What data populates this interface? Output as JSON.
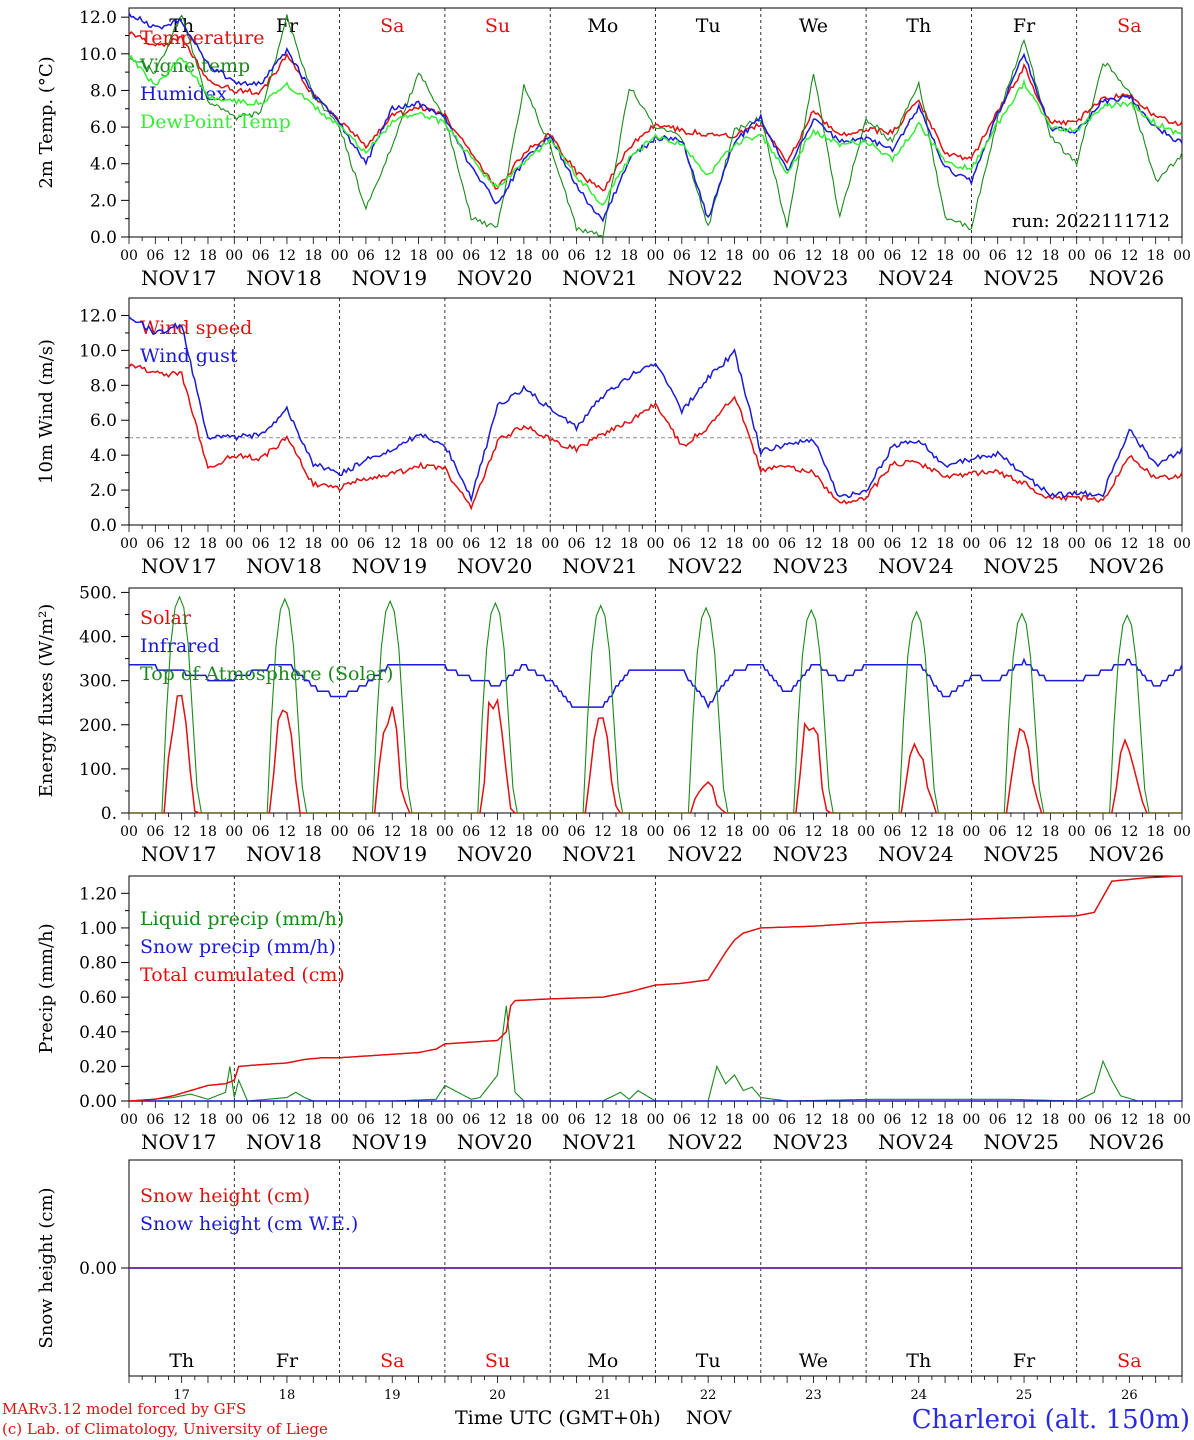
{
  "meta": {
    "run_label": "run: 2022111712",
    "model_line1": "MARv3.12 model forced by GFS",
    "model_line2": "(c) Lab. of Climatology, University of Liege",
    "xlabel": "Time UTC (GMT+0h)",
    "month": "NOV",
    "location": "Charleroi (alt. 150m)"
  },
  "colors": {
    "red": "#e01010",
    "darkgreen": "#1a8a1a",
    "blue": "#1a1ad8",
    "lightgreen": "#33ee33",
    "purple": "#7030a0",
    "weekend": "#e01010"
  },
  "days": [
    {
      "name": "Th",
      "date": "17",
      "weekend": false
    },
    {
      "name": "Fr",
      "date": "18",
      "weekend": false
    },
    {
      "name": "Sa",
      "date": "19",
      "weekend": true
    },
    {
      "name": "Su",
      "date": "20",
      "weekend": true
    },
    {
      "name": "Mo",
      "date": "21",
      "weekend": false
    },
    {
      "name": "Tu",
      "date": "22",
      "weekend": false
    },
    {
      "name": "We",
      "date": "23",
      "weekend": false
    },
    {
      "name": "Th",
      "date": "24",
      "weekend": false
    },
    {
      "name": "Fr",
      "date": "25",
      "weekend": false
    },
    {
      "name": "Sa",
      "date": "26",
      "weekend": true
    }
  ],
  "hour_labels": [
    "00",
    "06",
    "12",
    "18"
  ],
  "chart_data": [
    {
      "type": "line",
      "ylabel": "2m Temp. (°C)",
      "ylim": [
        0,
        12.5
      ],
      "yticks": [
        "0.0",
        "2.0",
        "4.0",
        "6.0",
        "8.0",
        "10.0",
        "12.0"
      ],
      "ytick_values": [
        0,
        2,
        4,
        6,
        8,
        10,
        12
      ],
      "legend_position": "top-left",
      "x_unit": "hours since NOV 17 00 UTC",
      "series": [
        {
          "name": "Temperature",
          "color": "red",
          "x": [
            0,
            6,
            12,
            18,
            24,
            30,
            36,
            42,
            48,
            54,
            60,
            66,
            72,
            78,
            84,
            90,
            96,
            102,
            108,
            114,
            120,
            126,
            132,
            138,
            144,
            150,
            156,
            162,
            168,
            174,
            180,
            186,
            192,
            198,
            204,
            210,
            216,
            222,
            228,
            234,
            240
          ],
          "y": [
            11.2,
            10.4,
            10.8,
            8.6,
            8.0,
            7.9,
            9.9,
            7.7,
            6.3,
            5.0,
            6.6,
            7.1,
            6.6,
            4.6,
            2.6,
            4.6,
            5.6,
            3.5,
            2.5,
            4.9,
            6.2,
            5.8,
            5.6,
            5.5,
            6.2,
            4.0,
            6.9,
            5.5,
            5.9,
            5.7,
            7.5,
            4.5,
            4.3,
            6.8,
            9.3,
            6.2,
            6.3,
            7.6,
            7.8,
            6.5,
            6.2
          ]
        },
        {
          "name": "Vigne temp",
          "color": "darkgreen",
          "x": [
            0,
            6,
            12,
            18,
            24,
            30,
            36,
            42,
            48,
            54,
            60,
            66,
            72,
            78,
            84,
            90,
            96,
            102,
            108,
            114,
            120,
            126,
            132,
            138,
            144,
            150,
            156,
            162,
            168,
            174,
            180,
            186,
            192,
            198,
            204,
            210,
            216,
            222,
            228,
            234,
            240
          ],
          "y": [
            9.9,
            9.0,
            12.2,
            7.4,
            6.5,
            6.8,
            12.0,
            7.7,
            6.0,
            1.5,
            5.0,
            9.0,
            6.5,
            1.0,
            0.5,
            8.2,
            5.0,
            0.5,
            0.0,
            8.2,
            6.0,
            5.4,
            0.5,
            5.8,
            6.5,
            0.5,
            9.0,
            1.0,
            6.5,
            5.2,
            8.5,
            1.0,
            0.5,
            6.5,
            10.8,
            5.5,
            4.0,
            9.6,
            8.0,
            3.0,
            4.5
          ]
        },
        {
          "name": "Humidex",
          "color": "blue",
          "x": [
            0,
            6,
            12,
            18,
            24,
            30,
            36,
            42,
            48,
            54,
            60,
            66,
            72,
            78,
            84,
            90,
            96,
            102,
            108,
            114,
            120,
            126,
            132,
            138,
            144,
            150,
            156,
            162,
            168,
            174,
            180,
            186,
            192,
            198,
            204,
            210,
            216,
            222,
            228,
            234,
            240
          ],
          "y": [
            12.2,
            11.4,
            11.8,
            9.4,
            8.5,
            8.3,
            10.2,
            7.8,
            6.2,
            4.0,
            7.0,
            7.3,
            6.5,
            3.8,
            1.8,
            4.2,
            5.5,
            2.8,
            0.8,
            4.3,
            5.4,
            5.3,
            1.0,
            5.2,
            6.5,
            3.6,
            6.4,
            5.2,
            5.4,
            4.7,
            7.1,
            3.8,
            3.0,
            6.7,
            10.0,
            5.9,
            5.8,
            7.4,
            7.7,
            6.0,
            5.1
          ]
        },
        {
          "name": "DewPoint Temp",
          "color": "lightgreen",
          "x": [
            0,
            6,
            12,
            18,
            24,
            30,
            36,
            42,
            48,
            54,
            60,
            66,
            72,
            78,
            84,
            90,
            96,
            102,
            108,
            114,
            120,
            126,
            132,
            138,
            144,
            150,
            156,
            162,
            168,
            174,
            180,
            186,
            192,
            198,
            204,
            210,
            216,
            222,
            228,
            234,
            240
          ],
          "y": [
            9.9,
            8.2,
            9.8,
            7.7,
            7.4,
            7.3,
            8.3,
            7.2,
            6.0,
            4.6,
            6.3,
            6.8,
            6.2,
            4.3,
            2.6,
            4.1,
            5.3,
            3.3,
            1.8,
            4.3,
            5.5,
            5.1,
            3.3,
            5.1,
            5.6,
            3.5,
            5.8,
            5.1,
            5.2,
            4.3,
            6.2,
            4.1,
            3.7,
            6.2,
            8.4,
            6.0,
            5.8,
            7.1,
            7.3,
            6.2,
            5.5
          ]
        }
      ]
    },
    {
      "type": "line",
      "ylabel": "10m Wind (m/s)",
      "ylim": [
        0,
        13
      ],
      "yticks": [
        "0.0",
        "2.0",
        "4.0",
        "6.0",
        "8.0",
        "10.0",
        "12.0"
      ],
      "ytick_values": [
        0,
        2,
        4,
        6,
        8,
        10,
        12
      ],
      "reference_line": 5,
      "legend_position": "top-left",
      "series": [
        {
          "name": "Wind speed",
          "color": "red",
          "x": [
            0,
            6,
            12,
            18,
            24,
            30,
            36,
            42,
            48,
            54,
            60,
            66,
            72,
            78,
            84,
            90,
            96,
            102,
            108,
            114,
            120,
            126,
            132,
            138,
            144,
            150,
            156,
            162,
            168,
            174,
            180,
            186,
            192,
            198,
            204,
            210,
            216,
            222,
            228,
            234,
            240
          ],
          "y": [
            9.2,
            8.7,
            8.6,
            3.3,
            4.0,
            3.8,
            5.0,
            2.3,
            2.1,
            2.7,
            2.9,
            3.4,
            3.2,
            1.0,
            4.8,
            5.7,
            4.9,
            4.3,
            5.2,
            5.9,
            7.0,
            4.5,
            5.6,
            7.4,
            3.2,
            3.3,
            3.0,
            1.2,
            1.6,
            3.5,
            3.6,
            2.7,
            3.0,
            3.0,
            2.4,
            1.5,
            1.6,
            1.4,
            4.0,
            2.6,
            2.9
          ]
        },
        {
          "name": "Wind gust",
          "color": "blue",
          "x": [
            0,
            6,
            12,
            18,
            24,
            30,
            36,
            42,
            48,
            54,
            60,
            66,
            72,
            78,
            84,
            90,
            96,
            102,
            108,
            114,
            120,
            126,
            132,
            138,
            144,
            150,
            156,
            162,
            168,
            174,
            180,
            186,
            192,
            198,
            204,
            210,
            216,
            222,
            228,
            234,
            240
          ],
          "y": [
            12.0,
            11.0,
            11.5,
            5.0,
            5.0,
            5.2,
            6.6,
            3.5,
            2.9,
            3.7,
            4.3,
            5.2,
            4.6,
            1.5,
            6.8,
            7.8,
            6.7,
            5.6,
            7.4,
            8.5,
            9.3,
            6.5,
            8.4,
            9.9,
            4.2,
            4.6,
            4.9,
            1.5,
            2.0,
            4.5,
            4.9,
            3.3,
            3.8,
            4.1,
            2.9,
            1.7,
            1.8,
            1.8,
            5.5,
            3.4,
            4.3
          ]
        }
      ]
    },
    {
      "type": "line",
      "ylabel": "Energy fluxes (W/m²)",
      "ylim": [
        0,
        510
      ],
      "yticks": [
        "0.",
        "100.",
        "200.",
        "300.",
        "400.",
        "500."
      ],
      "ytick_values": [
        0,
        100,
        200,
        300,
        400,
        500
      ],
      "legend_position": "top-left",
      "series": [
        {
          "name": "Solar",
          "color": "red",
          "daily_x_offsets": [
            8,
            9,
            10,
            11,
            12,
            13,
            14,
            15,
            16
          ],
          "daily_peaks": [
            275,
            250,
            230,
            285,
            240,
            70,
            220,
            150,
            200,
            160
          ],
          "daily_profile": [
            0,
            0.35,
            0.8,
            0.95,
            1.0,
            0.75,
            0.3,
            0.1,
            0
          ]
        },
        {
          "name": "Infrared",
          "color": "blue",
          "x": [
            0,
            6,
            12,
            18,
            24,
            30,
            36,
            42,
            48,
            54,
            60,
            66,
            72,
            78,
            84,
            90,
            96,
            102,
            108,
            114,
            120,
            126,
            132,
            138,
            144,
            150,
            156,
            162,
            168,
            174,
            180,
            186,
            192,
            198,
            204,
            210,
            216,
            222,
            228,
            234,
            240
          ],
          "y": [
            335,
            330,
            320,
            305,
            305,
            325,
            340,
            285,
            260,
            290,
            340,
            330,
            330,
            305,
            290,
            335,
            300,
            235,
            240,
            325,
            325,
            325,
            245,
            320,
            340,
            270,
            340,
            300,
            335,
            330,
            340,
            260,
            310,
            300,
            345,
            295,
            300,
            320,
            345,
            285,
            330
          ]
        },
        {
          "name": "Top of Atmosphere (Solar)",
          "color": "darkgreen",
          "daily_x_offsets": [
            7.5,
            8.5,
            9.5,
            10.5,
            11.5,
            12.5,
            13.5,
            14.5,
            15.5,
            16.5
          ],
          "daily_peaks": [
            490,
            485,
            480,
            476,
            470,
            465,
            460,
            456,
            452,
            448
          ],
          "daily_profile": [
            0,
            0.45,
            0.78,
            0.95,
            1.0,
            0.95,
            0.78,
            0.45,
            0.12,
            0
          ]
        }
      ]
    },
    {
      "type": "line",
      "ylabel": "Precip (mm/h)",
      "ylim": [
        0,
        1.3
      ],
      "yticks": [
        "0.00",
        "0.20",
        "0.40",
        "0.60",
        "0.80",
        "1.00",
        "1.20"
      ],
      "ytick_values": [
        0,
        0.2,
        0.4,
        0.6,
        0.8,
        1.0,
        1.2
      ],
      "legend_position": "top-left",
      "series": [
        {
          "name": "Liquid precip (mm/h)",
          "color": "darkgreen",
          "x": [
            0,
            10,
            14,
            18,
            22,
            23,
            24,
            25,
            27,
            36,
            38,
            40,
            42,
            60,
            70,
            72,
            78,
            80,
            84,
            86,
            88,
            90,
            92,
            96,
            102,
            108,
            112,
            114,
            116,
            120,
            132,
            134,
            136,
            138,
            140,
            142,
            144,
            150,
            170,
            200,
            216,
            220,
            222,
            224,
            226,
            230,
            240
          ],
          "y": [
            0,
            0.02,
            0.04,
            0.01,
            0.05,
            0.2,
            0.02,
            0.12,
            0,
            0.02,
            0.05,
            0.02,
            0,
            0,
            0.01,
            0.09,
            0.01,
            0.02,
            0.15,
            0.55,
            0.05,
            0,
            0,
            0,
            0,
            0,
            0.05,
            0.01,
            0.06,
            0,
            0,
            0.2,
            0.1,
            0.15,
            0.06,
            0.08,
            0.02,
            0,
            0.01,
            0.01,
            0,
            0.05,
            0.23,
            0.12,
            0.03,
            0,
            0
          ]
        },
        {
          "name": "Snow precip (mm/h)",
          "color": "blue",
          "x": [
            0,
            240
          ],
          "y": [
            0,
            0
          ]
        },
        {
          "name": "Total cumulated (cm)",
          "color": "red",
          "x": [
            0,
            6,
            10,
            14,
            18,
            22,
            24,
            25,
            30,
            36,
            40,
            44,
            48,
            54,
            60,
            66,
            70,
            72,
            78,
            84,
            86,
            87,
            88,
            96,
            108,
            114,
            120,
            126,
            132,
            134,
            136,
            138,
            140,
            144,
            156,
            168,
            180,
            192,
            204,
            216,
            220,
            224,
            232,
            240
          ],
          "y": [
            0,
            0.01,
            0.03,
            0.06,
            0.09,
            0.1,
            0.12,
            0.2,
            0.21,
            0.22,
            0.24,
            0.25,
            0.25,
            0.26,
            0.27,
            0.28,
            0.3,
            0.33,
            0.34,
            0.35,
            0.4,
            0.55,
            0.58,
            0.59,
            0.6,
            0.63,
            0.67,
            0.68,
            0.7,
            0.78,
            0.86,
            0.93,
            0.97,
            1.0,
            1.01,
            1.03,
            1.04,
            1.05,
            1.06,
            1.07,
            1.09,
            1.27,
            1.29,
            1.3
          ]
        }
      ]
    },
    {
      "type": "line",
      "ylabel": "Snow height (cm)",
      "ylim": [
        -1,
        1
      ],
      "yticks": [
        "0.00"
      ],
      "ytick_values": [
        0
      ],
      "legend_position": "top-left",
      "series": [
        {
          "name": "Snow height (cm)",
          "color": "red",
          "x": [
            0,
            240
          ],
          "y": [
            0,
            0
          ]
        },
        {
          "name": "Snow height (cm W.E.)",
          "color": "blue",
          "x": [
            0,
            240
          ],
          "y": [
            0,
            0
          ]
        }
      ]
    }
  ]
}
